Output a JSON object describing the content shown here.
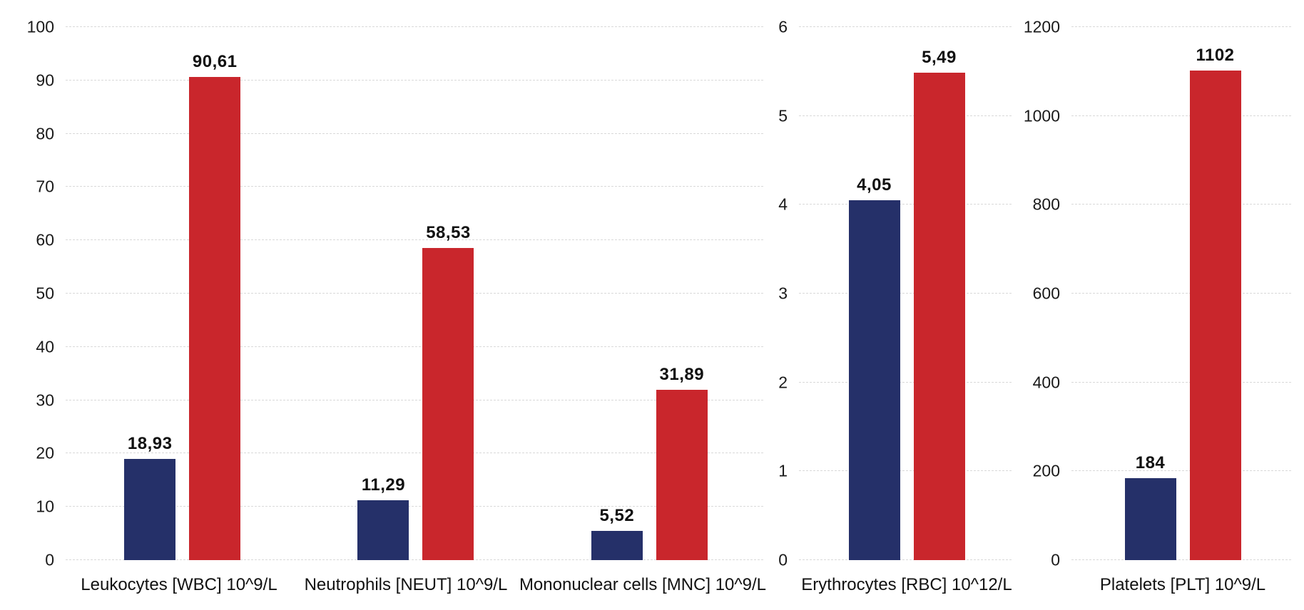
{
  "page": {
    "background": "#ffffff"
  },
  "colors": {
    "series_dark_blue": "#253069",
    "series_red": "#C9262C",
    "gridline": "#d9d9d9",
    "text": "#111111"
  },
  "chart_data": [
    {
      "type": "bar",
      "title": "",
      "xlabel": "",
      "ylabel": "",
      "legend": "none",
      "grid": "dashed-horizontal",
      "categories": [
        "Leukocytes  [WBC] 10^9/L",
        "Neutrophils [NEUT] 10^9/L",
        "Mononuclear cells [MNC] 10^9/L"
      ],
      "series": [
        {
          "name": "dark-blue",
          "color": "#253069",
          "values": [
            18.93,
            11.29,
            5.52
          ],
          "labels": [
            "18,93",
            "11,29",
            "5,52"
          ]
        },
        {
          "name": "red",
          "color": "#C9262C",
          "values": [
            90.61,
            58.53,
            31.89
          ],
          "labels": [
            "90,61",
            "58,53",
            "31,89"
          ]
        }
      ],
      "ylim": [
        0,
        100
      ],
      "yticks": [
        0,
        10,
        20,
        30,
        40,
        50,
        60,
        70,
        80,
        90,
        100
      ]
    },
    {
      "type": "bar",
      "title": "",
      "xlabel": "",
      "ylabel": "",
      "legend": "none",
      "grid": "dashed-horizontal",
      "categories": [
        "Erythrocytes [RBC] 10^12/L"
      ],
      "series": [
        {
          "name": "dark-blue",
          "color": "#253069",
          "values": [
            4.05
          ],
          "labels": [
            "4,05"
          ]
        },
        {
          "name": "red",
          "color": "#C9262C",
          "values": [
            5.49
          ],
          "labels": [
            "5,49"
          ]
        }
      ],
      "ylim": [
        0,
        6
      ],
      "yticks": [
        0,
        1,
        2,
        3,
        4,
        5,
        6
      ]
    },
    {
      "type": "bar",
      "title": "",
      "xlabel": "",
      "ylabel": "",
      "legend": "none",
      "grid": "dashed-horizontal",
      "categories": [
        "Platelets [PLT] 10^9/L"
      ],
      "series": [
        {
          "name": "dark-blue",
          "color": "#253069",
          "values": [
            184
          ],
          "labels": [
            "184"
          ]
        },
        {
          "name": "red",
          "color": "#C9262C",
          "values": [
            1102
          ],
          "labels": [
            "1102"
          ]
        }
      ],
      "ylim": [
        0,
        1200
      ],
      "yticks": [
        0,
        200,
        400,
        600,
        800,
        1000,
        1200
      ]
    }
  ]
}
